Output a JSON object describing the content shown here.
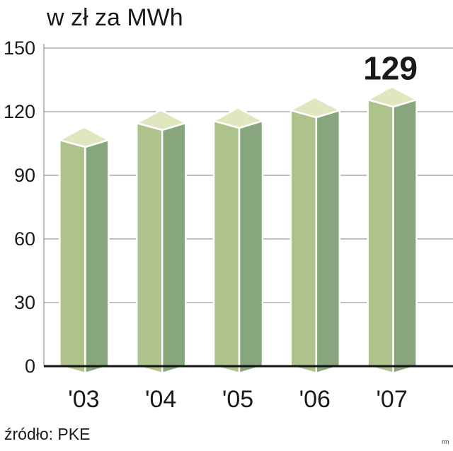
{
  "title": "w zł za MWh",
  "source": "źródło: PKE",
  "credit": "rm",
  "chart_data": {
    "type": "bar",
    "categories": [
      "'03",
      "'04",
      "'05",
      "'06",
      "'07"
    ],
    "values": [
      110,
      118,
      119,
      124,
      129
    ],
    "value_labels": [
      "",
      "",
      "",
      "",
      "129"
    ],
    "ylim": [
      0,
      150
    ],
    "yticks": [
      0,
      30,
      60,
      90,
      120,
      150
    ],
    "ytick_labels": [
      "0",
      "30",
      "60",
      "90",
      "120",
      "150"
    ],
    "grid": true,
    "colors": {
      "front": "#aec38c",
      "side": "#88a67d",
      "top": "#e0e6bd",
      "outline": "#ffffff",
      "baseline": "#111111",
      "grid": "#9a9a9a"
    }
  }
}
